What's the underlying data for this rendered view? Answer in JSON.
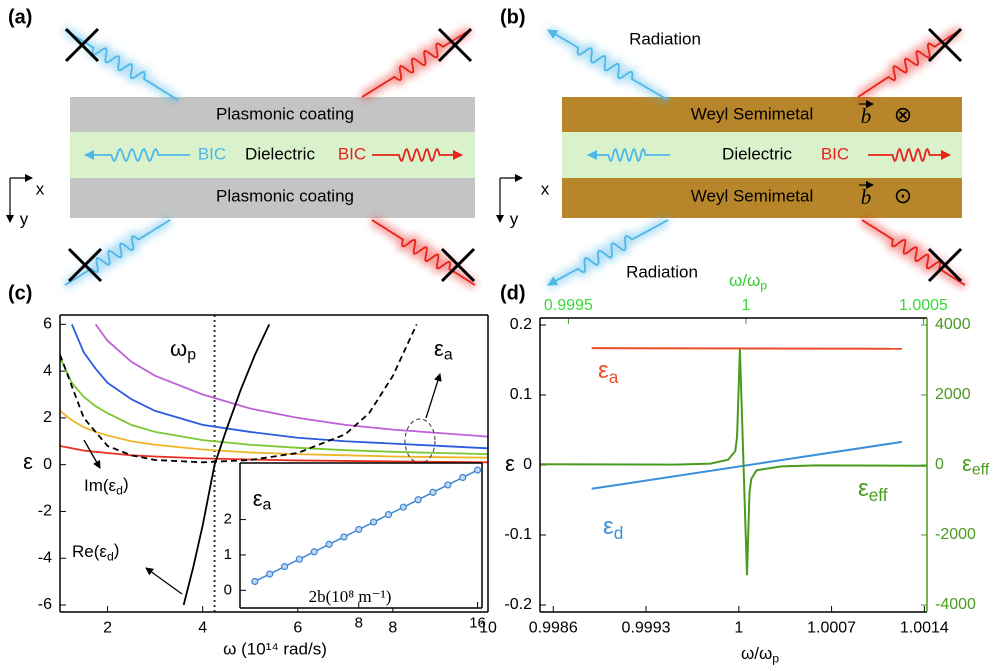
{
  "panels": {
    "a": {
      "label": "(a)",
      "top_layer": "Plasmonic coating",
      "middle_layer": "Dielectric",
      "bottom_layer": "Plasmonic coating",
      "left_mode": "BIC",
      "right_mode": "BIC",
      "axis_x": "x",
      "axis_y": "y"
    },
    "b": {
      "label": "(b)",
      "top_layer": "Weyl Semimetal",
      "middle_layer": "Dielectric",
      "bottom_layer": "Weyl Semimetal",
      "right_mode": "BIC",
      "axis_x": "x",
      "axis_y": "y",
      "radiation_top": "Radiation",
      "radiation_bottom": "Radiation",
      "top_field": {
        "vector": "b",
        "symbol": "⊗"
      },
      "bottom_field": {
        "vector": "b",
        "symbol": "⊙"
      }
    },
    "c": {
      "label": "(c)"
    },
    "d": {
      "label": "(d)"
    }
  },
  "chart_data": [
    {
      "type": "line",
      "xlabel": "ω (10¹⁴ rad/s)",
      "ylabel": "ε",
      "xlim": [
        1,
        10
      ],
      "ylim": [
        -6.3,
        6.4
      ],
      "xticks": [
        2,
        4,
        6,
        8,
        10
      ],
      "yticks": [
        -6,
        -4,
        -2,
        0,
        2,
        4,
        6
      ],
      "x": [
        1,
        1.25,
        1.5,
        1.75,
        2,
        2.5,
        3,
        4,
        5,
        6,
        7,
        8,
        9,
        10
      ],
      "series": [
        {
          "color": "#c060d8",
          "values": [
            null,
            null,
            null,
            6.0,
            5.3,
            4.4,
            3.8,
            3.0,
            2.4,
            2.0,
            1.7,
            1.5,
            1.35,
            1.2
          ]
        },
        {
          "color": "#2a5ce0",
          "values": [
            null,
            6.0,
            4.8,
            4.1,
            3.5,
            2.8,
            2.3,
            1.7,
            1.4,
            1.15,
            1.0,
            0.9,
            0.8,
            0.7
          ]
        },
        {
          "color": "#7cc832",
          "values": [
            4.6,
            3.5,
            2.9,
            2.5,
            2.2,
            1.7,
            1.4,
            1.05,
            0.85,
            0.72,
            0.62,
            0.55,
            0.5,
            0.45
          ]
        },
        {
          "color": "#f0b428",
          "values": [
            2.3,
            1.9,
            1.6,
            1.4,
            1.25,
            1.0,
            0.85,
            0.65,
            0.52,
            0.45,
            0.4,
            0.35,
            0.32,
            0.3
          ]
        },
        {
          "color": "#e83020",
          "values": [
            0.8,
            0.7,
            0.6,
            0.55,
            0.5,
            0.4,
            0.35,
            0.27,
            0.22,
            0.18,
            0.16,
            0.14,
            0.12,
            0.1
          ]
        },
        {
          "color": "#000000",
          "x": [
            3.6,
            3.8,
            4.0,
            4.25,
            4.5,
            4.8,
            5.1,
            5.4
          ],
          "values": [
            -6,
            -4.4,
            -2.6,
            0,
            1.5,
            3.2,
            4.7,
            6
          ]
        },
        {
          "color": "#000000",
          "dash": true,
          "x": [
            1,
            1.5,
            2,
            2.5,
            3,
            4,
            5,
            6,
            7,
            7.5,
            8,
            8.5
          ],
          "values": [
            4.7,
            2.0,
            0.8,
            0.4,
            0.2,
            0.1,
            0.2,
            0.5,
            1.3,
            2.2,
            3.8,
            6
          ]
        }
      ],
      "vline": 4.25,
      "annotations": [
        {
          "text": "ω",
          "sub": "p"
        },
        {
          "text": "ε",
          "sub": "a"
        },
        {
          "text": "Im(ε",
          "sub": "d",
          "after": ")"
        },
        {
          "text": "Re(ε",
          "sub": "d",
          "after": ")"
        }
      ]
    },
    {
      "type": "line",
      "markers": true,
      "xlabel": "2b(10⁸ m⁻¹)",
      "ylabel": {
        "text": "ε",
        "sub": "a"
      },
      "xlim": [
        0,
        16.3
      ],
      "ylim": [
        -0.5,
        3.6
      ],
      "xticks": [
        8,
        16
      ],
      "yticks": [
        0,
        1,
        2
      ],
      "x": [
        1,
        2,
        3,
        4,
        5,
        6,
        7,
        8,
        9,
        10,
        11,
        12,
        13,
        14,
        15,
        16
      ],
      "values": [
        0.25,
        0.46,
        0.67,
        0.88,
        1.09,
        1.3,
        1.51,
        1.72,
        1.93,
        2.14,
        2.35,
        2.56,
        2.77,
        2.98,
        3.19,
        3.4
      ],
      "color": "#3a86d0"
    },
    {
      "type": "line",
      "xlabel": {
        "text": "ω/ω",
        "sub": "p"
      },
      "x2label": {
        "text": "ω/ω",
        "sub": "p"
      },
      "ylabel": "ε",
      "y2label": {
        "text": "ε",
        "sub": "eff"
      },
      "xlim": [
        0.9985,
        1.00142
      ],
      "xticks": [
        0.9986,
        0.9993,
        1,
        1.0007,
        1.0014
      ],
      "x2lim": [
        0.99942,
        1.00051
      ],
      "x2ticks": [
        0.9995,
        1,
        1.0005
      ],
      "ylim": [
        -0.21,
        0.21
      ],
      "yticks": [
        -0.2,
        -0.1,
        0,
        0.1,
        0.2
      ],
      "y2lim": [
        -4200,
        4200
      ],
      "y2ticks": [
        -4000,
        -2000,
        0,
        2000,
        4000
      ],
      "series": [
        {
          "color": "#e8502a",
          "x": [
            0.99889,
            1.00123
          ],
          "values": [
            0.167,
            0.166
          ]
        },
        {
          "color": "#3a8fd8",
          "x": [
            0.99889,
            1.00123
          ],
          "values": [
            -0.034,
            0.033
          ]
        },
        {
          "color": "#4a9a20",
          "axis": "y2",
          "xaxis": "x2",
          "x": [
            0.99942,
            0.9998,
            0.9999,
            0.99995,
            0.99997,
            0.999975,
            0.999983,
            1.000003,
            1.00001,
            1.000015,
            1.00003,
            1.0001,
            1.0002,
            1.00051
          ],
          "values": [
            20,
            10,
            40,
            150,
            400,
            800,
            3300,
            -3150,
            -800,
            -400,
            -150,
            -40,
            -10,
            -20
          ]
        }
      ],
      "annotations": [
        {
          "text": "ε",
          "sub": "a"
        },
        {
          "text": "ε",
          "sub": "d"
        },
        {
          "text": "ε",
          "sub": "eff"
        }
      ]
    }
  ]
}
